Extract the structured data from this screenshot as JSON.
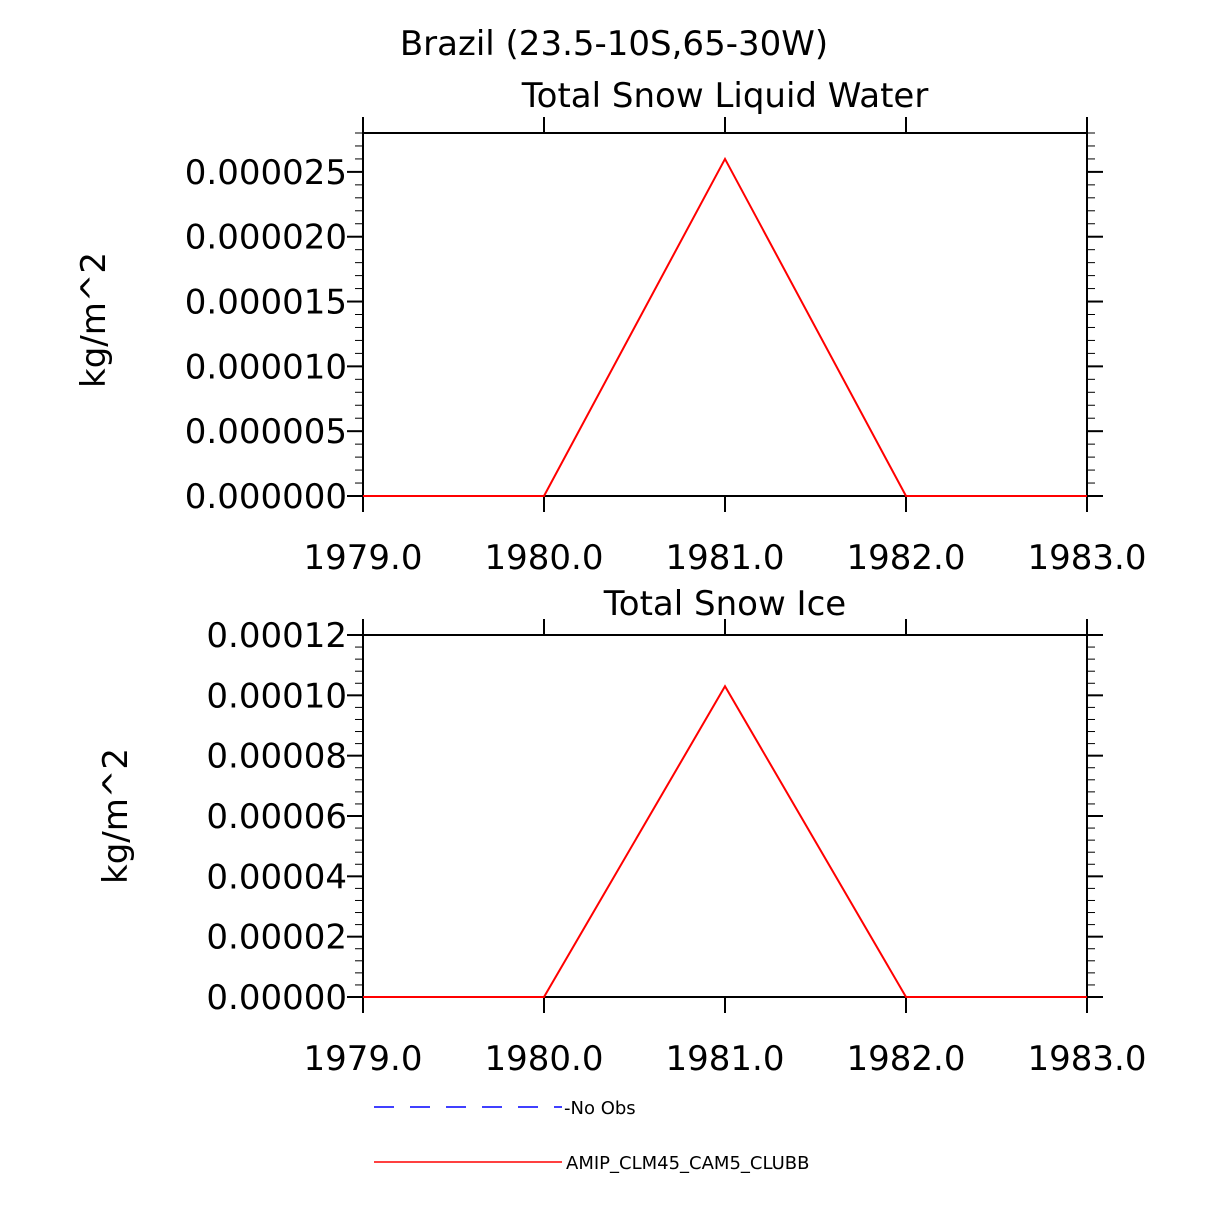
{
  "figure_title": "Brazil (23.5-10S,65-30W)",
  "chart_data": [
    {
      "type": "line",
      "title": "Total Snow Liquid Water",
      "xlabel": "",
      "ylabel": "kg/m^2",
      "xlim": [
        1979.0,
        1983.0
      ],
      "ylim": [
        0,
        2.8e-05
      ],
      "x_ticks": [
        "1979.0",
        "1980.0",
        "1981.0",
        "1982.0",
        "1983.0"
      ],
      "y_ticks": [
        "0.000000",
        "0.000005",
        "0.000010",
        "0.000015",
        "0.000020",
        "0.000025"
      ],
      "series": [
        {
          "name": "AMIP_CLM45_CAM5_CLUBB",
          "color": "#ff0000",
          "style": "solid",
          "x": [
            1979.0,
            1980.0,
            1981.0,
            1982.0,
            1983.0
          ],
          "values": [
            0.0,
            0.0,
            2.6e-05,
            0.0,
            0.0
          ]
        }
      ]
    },
    {
      "type": "line",
      "title": "Total Snow Ice",
      "xlabel": "",
      "ylabel": "kg/m^2",
      "xlim": [
        1979.0,
        1983.0
      ],
      "ylim": [
        0,
        0.00012
      ],
      "x_ticks": [
        "1979.0",
        "1980.0",
        "1981.0",
        "1982.0",
        "1983.0"
      ],
      "y_ticks": [
        "0.00000",
        "0.00002",
        "0.00004",
        "0.00006",
        "0.00008",
        "0.00010",
        "0.00012"
      ],
      "series": [
        {
          "name": "AMIP_CLM45_CAM5_CLUBB",
          "color": "#ff0000",
          "style": "solid",
          "x": [
            1979.0,
            1980.0,
            1981.0,
            1982.0,
            1983.0
          ],
          "values": [
            0.0,
            0.0,
            0.000103,
            0.0,
            0.0
          ]
        }
      ]
    }
  ],
  "legend": [
    {
      "label": "-No Obs",
      "color": "#0000ff",
      "style": "dashed"
    },
    {
      "label": "AMIP_CLM45_CAM5_CLUBB",
      "color": "#ff0000",
      "style": "solid"
    }
  ]
}
